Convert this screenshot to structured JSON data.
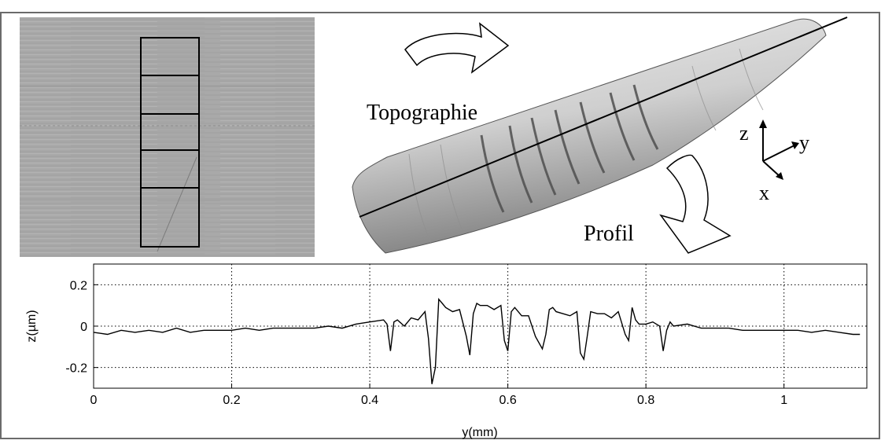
{
  "diagram": {
    "labels": {
      "topographie": "Topographie",
      "profil": "Profil",
      "axis_z": "z",
      "axis_y": "y",
      "axis_x": "x"
    },
    "colors": {
      "frame": "#555555",
      "micrograph": "#a7a7a7",
      "surface_light": "#e8e8e8",
      "surface_dark": "#6f6f6f",
      "line": "#000000"
    }
  },
  "chart_data": {
    "type": "line",
    "xlabel": "y(mm)",
    "ylabel": "z(µm)",
    "xlim": [
      0,
      1.12
    ],
    "ylim": [
      -0.3,
      0.3
    ],
    "xticks": [
      0,
      0.2,
      0.4,
      0.6,
      0.8,
      1
    ],
    "xtick_labels": [
      "0",
      "0.2",
      "0.4",
      "0.6",
      "0.8",
      "1"
    ],
    "yticks": [
      0.2,
      0,
      -0.2
    ],
    "ytick_labels": [
      "0.2",
      "0",
      "-0.2"
    ],
    "grid": "dotted",
    "series": [
      {
        "x": [
          0,
          0.02,
          0.04,
          0.06,
          0.08,
          0.1,
          0.12,
          0.14,
          0.16,
          0.18,
          0.2,
          0.22,
          0.24,
          0.26,
          0.28,
          0.3,
          0.32,
          0.34,
          0.36,
          0.38,
          0.4,
          0.42,
          0.425,
          0.43,
          0.435,
          0.44,
          0.45,
          0.46,
          0.47,
          0.48,
          0.485,
          0.49,
          0.495,
          0.5,
          0.505,
          0.51,
          0.52,
          0.53,
          0.54,
          0.545,
          0.55,
          0.555,
          0.56,
          0.57,
          0.58,
          0.59,
          0.595,
          0.6,
          0.605,
          0.61,
          0.62,
          0.63,
          0.64,
          0.65,
          0.655,
          0.66,
          0.665,
          0.67,
          0.68,
          0.69,
          0.7,
          0.705,
          0.71,
          0.715,
          0.72,
          0.73,
          0.74,
          0.75,
          0.76,
          0.77,
          0.775,
          0.78,
          0.785,
          0.79,
          0.8,
          0.81,
          0.82,
          0.825,
          0.83,
          0.835,
          0.84,
          0.86,
          0.88,
          0.9,
          0.92,
          0.94,
          0.96,
          0.98,
          1.0,
          1.02,
          1.04,
          1.06,
          1.08,
          1.1,
          1.11
        ],
        "y": [
          -0.03,
          -0.04,
          -0.02,
          -0.03,
          -0.02,
          -0.03,
          -0.01,
          -0.03,
          -0.02,
          -0.02,
          -0.02,
          -0.01,
          -0.02,
          -0.01,
          -0.01,
          -0.01,
          -0.01,
          0.0,
          -0.01,
          0.01,
          0.02,
          0.03,
          0.01,
          -0.12,
          0.02,
          0.03,
          0.0,
          0.04,
          0.03,
          0.07,
          -0.06,
          -0.28,
          -0.2,
          0.13,
          0.11,
          0.09,
          0.07,
          0.08,
          -0.05,
          -0.14,
          0.06,
          0.11,
          0.1,
          0.1,
          0.08,
          0.1,
          -0.07,
          -0.12,
          0.07,
          0.09,
          0.05,
          0.05,
          -0.05,
          -0.11,
          -0.04,
          0.08,
          0.09,
          0.07,
          0.06,
          0.05,
          0.07,
          -0.13,
          -0.16,
          -0.05,
          0.07,
          0.06,
          0.06,
          0.04,
          0.07,
          -0.04,
          -0.07,
          0.09,
          0.03,
          0.01,
          0.01,
          0.02,
          0.0,
          -0.12,
          -0.02,
          0.02,
          0.0,
          0.01,
          -0.01,
          -0.01,
          -0.01,
          -0.02,
          -0.02,
          -0.02,
          -0.02,
          -0.02,
          -0.03,
          -0.02,
          -0.03,
          -0.04,
          -0.04
        ]
      }
    ]
  }
}
